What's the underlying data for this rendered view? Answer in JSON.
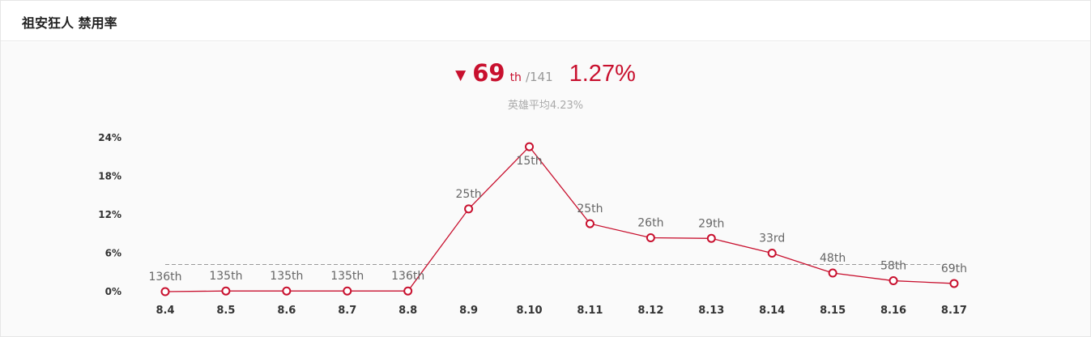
{
  "header": {
    "title": "祖安狂人 禁用率"
  },
  "summary": {
    "trend_icon": "down-triangle-icon",
    "arrow": "▼",
    "rank": "69",
    "rank_suffix": "th",
    "rank_total": "/141",
    "rate": "1.27%",
    "avg_label": "英雄平均4.23%"
  },
  "colors": {
    "accent": "#c8102e",
    "muted_text": "#999999",
    "avg_line": "#999999",
    "background": "#fafafa"
  },
  "chart_data": {
    "type": "line",
    "title": "",
    "xlabel": "",
    "ylabel": "",
    "categories": [
      "8.4",
      "8.5",
      "8.6",
      "8.7",
      "8.8",
      "8.9",
      "8.10",
      "8.11",
      "8.12",
      "8.13",
      "8.14",
      "8.15",
      "8.16",
      "8.17"
    ],
    "series": [
      {
        "values": [
          0.0,
          0.1,
          0.1,
          0.1,
          0.1,
          12.9,
          22.6,
          10.6,
          8.4,
          8.3,
          6.0,
          2.9,
          1.7,
          1.27
        ],
        "point_labels": [
          "136th",
          "135th",
          "135th",
          "135th",
          "136th",
          "25th",
          "15th",
          "25th",
          "26th",
          "29th",
          "33rd",
          "48th",
          "58th",
          "69th"
        ]
      }
    ],
    "yticks": [
      "0%",
      "6%",
      "12%",
      "18%",
      "24%"
    ],
    "ylim": [
      0,
      24
    ],
    "reference_line": {
      "value": 4.23,
      "style": "dashed"
    },
    "grid": false,
    "legend": "none"
  }
}
